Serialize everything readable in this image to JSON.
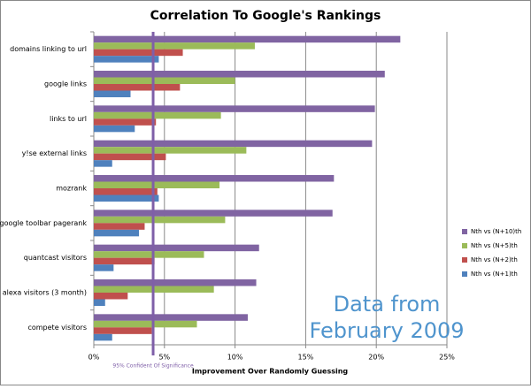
{
  "chart_data": {
    "type": "hbar",
    "title": "Correlation To Google's Rankings",
    "x_label": "Improvement Over Randomly Guessing",
    "categories": [
      "domains linking to url",
      "google links",
      "links to url",
      "y!se external links",
      "mozrank",
      "google toolbar pagerank",
      "quantcast visitors",
      "alexa visitors (3 month)",
      "compete visitors"
    ],
    "series": [
      {
        "name": "Nth vs (N+10)th",
        "color": "#8064a2",
        "values": [
          21.7,
          20.6,
          19.9,
          19.7,
          17.0,
          16.9,
          11.7,
          11.5,
          10.9
        ]
      },
      {
        "name": "Nth vs (N+5)th",
        "color": "#9bbb59",
        "values": [
          11.4,
          10.0,
          9.0,
          10.8,
          8.9,
          9.3,
          7.8,
          8.5,
          7.3
        ]
      },
      {
        "name": "Nth vs (N+2)th",
        "color": "#c0504d",
        "values": [
          6.3,
          6.1,
          4.4,
          5.1,
          4.5,
          3.6,
          4.3,
          2.4,
          4.1
        ]
      },
      {
        "name": "Nth vs (N+1)th",
        "color": "#4f81bd",
        "values": [
          4.6,
          2.6,
          2.9,
          1.3,
          4.6,
          3.2,
          1.4,
          0.8,
          1.3
        ]
      }
    ],
    "xlim": [
      0,
      25
    ],
    "xticks": [
      {
        "value": 0,
        "label": "0%"
      },
      {
        "value": 5,
        "label": "5%"
      },
      {
        "value": 10,
        "label": "10%"
      },
      {
        "value": 15,
        "label": "15%"
      },
      {
        "value": 20,
        "label": "20%"
      },
      {
        "value": 25,
        "label": "25%"
      }
    ],
    "grid": true,
    "legend": "right",
    "reference_line": {
      "value": 4.2,
      "label": "95% Confident Of Significance",
      "color": "#7f5fa8"
    },
    "annotation": [
      "Data from",
      "February 2009"
    ],
    "annotation_color": "#4f94cd"
  }
}
